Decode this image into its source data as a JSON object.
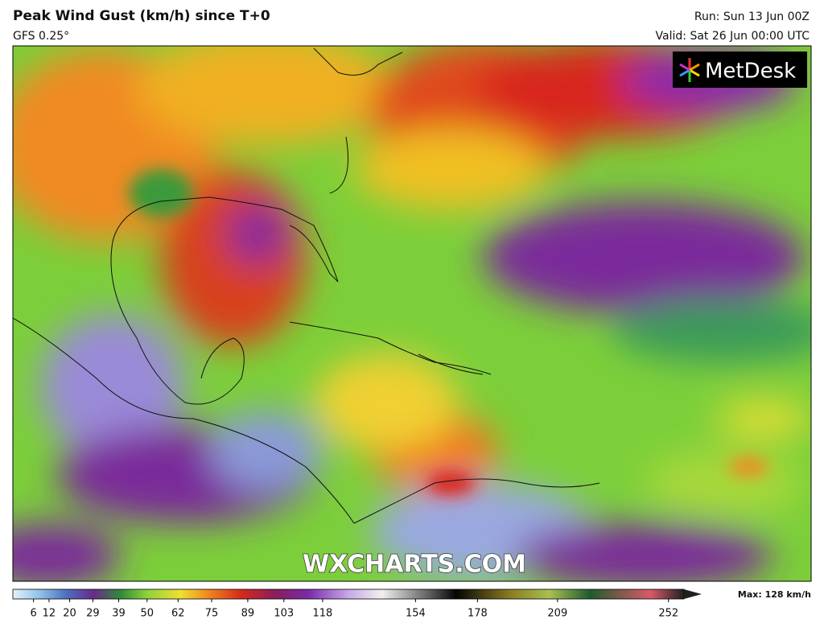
{
  "header": {
    "title": "Peak Wind Gust (km/h) since T+0",
    "model": "GFS 0.25°",
    "run": "Run: Sun 13 Jun 00Z",
    "valid": "Valid: Sat 26 Jun 00:00 UTC"
  },
  "logo": "MetDesk",
  "watermark": "WXCHARTS.COM",
  "colorbar": {
    "lim": [
      -2,
      258
    ],
    "ticks": [
      6,
      12,
      20,
      29,
      39,
      50,
      62,
      75,
      89,
      103,
      118,
      154,
      178,
      209,
      252
    ],
    "max_label": "Max: 128 km/h"
  }
}
